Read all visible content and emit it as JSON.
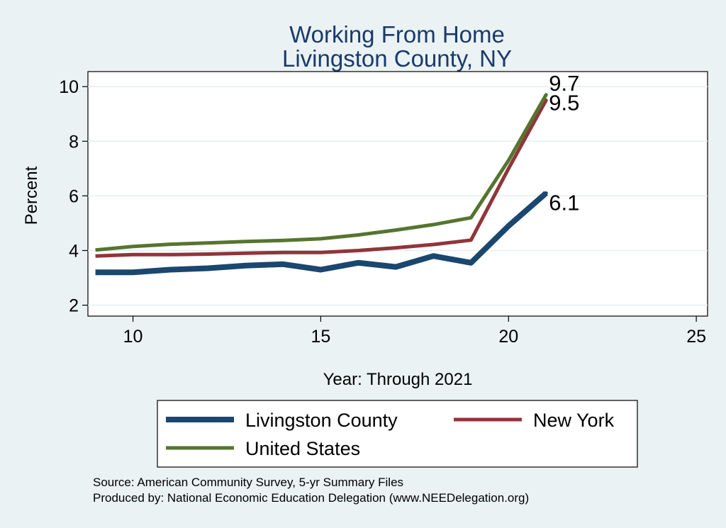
{
  "chart_data": {
    "type": "line",
    "title": [
      "Working From Home",
      "Livingston County, NY"
    ],
    "xlabel": "Year: Through 2021",
    "ylabel": "Percent",
    "xlim": [
      8.8,
      25.3
    ],
    "ylim": [
      1.6,
      10.55
    ],
    "xticks": [
      10,
      15,
      20,
      25
    ],
    "yticks": [
      2,
      4,
      6,
      8,
      10
    ],
    "grid": true,
    "legend_position": "bottom",
    "series": [
      {
        "name": "Livingston County",
        "color": "#1a476f",
        "x": [
          9,
          10,
          11,
          12,
          13,
          14,
          15,
          16,
          17,
          18,
          19,
          20,
          21
        ],
        "y": [
          3.2,
          3.2,
          3.3,
          3.35,
          3.45,
          3.5,
          3.3,
          3.55,
          3.4,
          3.8,
          3.55,
          4.9,
          6.1
        ],
        "end_label": "6.1"
      },
      {
        "name": "New York",
        "color": "#90353b",
        "x": [
          9,
          10,
          11,
          12,
          13,
          14,
          15,
          16,
          17,
          18,
          19,
          20,
          21
        ],
        "y": [
          3.8,
          3.85,
          3.85,
          3.87,
          3.9,
          3.93,
          3.93,
          4.0,
          4.1,
          4.22,
          4.38,
          7.0,
          9.5
        ],
        "end_label": "9.5"
      },
      {
        "name": "United States",
        "color": "#55752f",
        "x": [
          9,
          10,
          11,
          12,
          13,
          14,
          15,
          16,
          17,
          18,
          19,
          20,
          21
        ],
        "y": [
          4.02,
          4.15,
          4.23,
          4.28,
          4.33,
          4.37,
          4.43,
          4.57,
          4.75,
          4.95,
          5.2,
          7.3,
          9.7
        ],
        "end_label": "9.7"
      }
    ],
    "notes": [
      "Source: American Community Survey, 5-yr Summary Files",
      "Produced by: National Economic Education Delegation (www.NEEDelegation.org)"
    ]
  }
}
